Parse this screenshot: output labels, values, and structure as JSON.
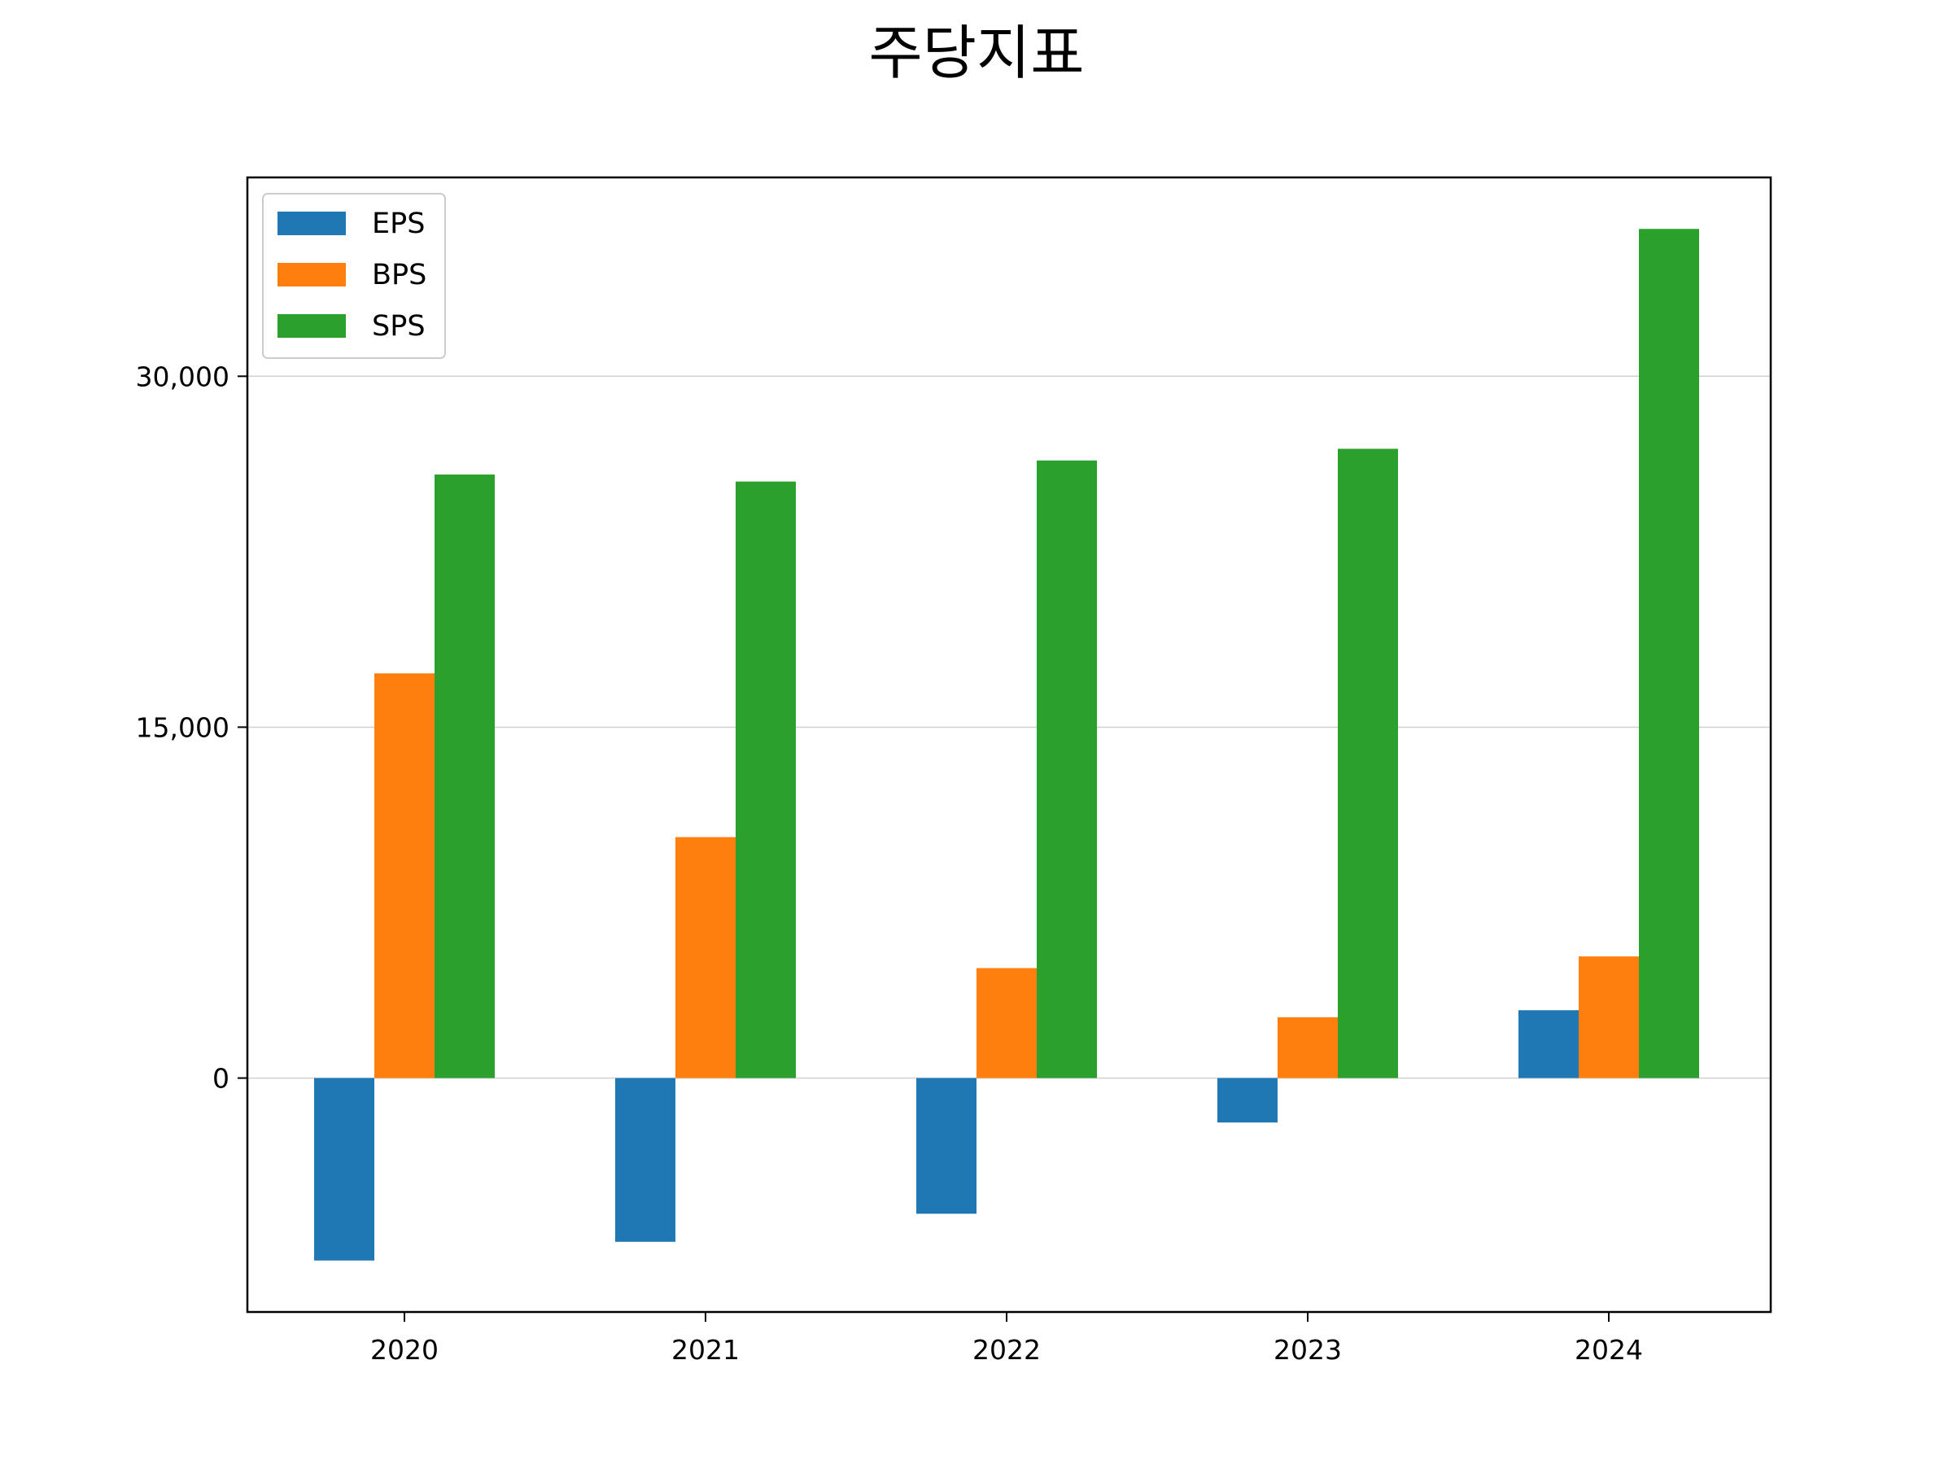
{
  "chart_data": {
    "type": "bar",
    "title": "주당지표",
    "xlabel": "",
    "ylabel": "",
    "categories": [
      "2020",
      "2021",
      "2022",
      "2023",
      "2024"
    ],
    "series": [
      {
        "name": "EPS",
        "color": "#1f77b4",
        "values": [
          -7800,
          -7000,
          -5800,
          -1900,
          2900
        ]
      },
      {
        "name": "BPS",
        "color": "#ff7f0e",
        "values": [
          17300,
          10300,
          4700,
          2600,
          5200
        ]
      },
      {
        "name": "SPS",
        "color": "#2ca02c",
        "values": [
          25800,
          25500,
          26400,
          26900,
          36300
        ]
      }
    ],
    "yticks": [
      0,
      15000,
      30000
    ],
    "ytick_labels": [
      "0",
      "15,000",
      "30,000"
    ],
    "ylim": [
      -10000,
      38500
    ],
    "grid": "horizontal",
    "legend_position": "upper-left"
  }
}
